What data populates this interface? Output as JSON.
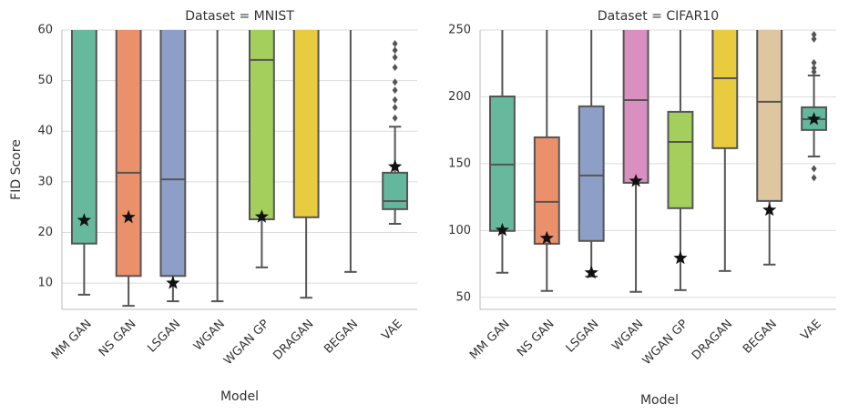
{
  "chart_data": [
    {
      "type": "box",
      "title": "Dataset = MNIST",
      "y_label": "FID Score",
      "x_label": "Model",
      "categories": [
        "MM GAN",
        "NS GAN",
        "LSGAN",
        "WGAN",
        "WGAN GP",
        "DRAGAN",
        "BEGAN",
        "VAE"
      ],
      "colors": [
        "#66b99c",
        "#ea906b",
        "#8d9fc6",
        "#d98fc0",
        "#a5cf5d",
        "#e9cb3f",
        "#dec6a0",
        "#62b79c"
      ],
      "whislo": [
        7.7,
        5.5,
        6.4,
        6.4,
        13.1,
        7.1,
        12.2,
        21.7
      ],
      "q1": [
        17.8,
        11.4,
        11.4,
        null,
        22.6,
        23.0,
        null,
        24.6
      ],
      "median": [
        null,
        31.8,
        30.5,
        null,
        54.1,
        null,
        null,
        26.2
      ],
      "q3": [
        null,
        null,
        null,
        null,
        null,
        null,
        null,
        31.8
      ],
      "whishi": [
        null,
        null,
        null,
        null,
        null,
        null,
        null,
        40.9
      ],
      "best": [
        22.4,
        23.0,
        10.0,
        null,
        23.1,
        null,
        null,
        33.0
      ],
      "outliers": [
        [],
        [],
        [],
        [],
        [],
        [],
        [],
        [
          57.3,
          56.0,
          54.6,
          52.6,
          49.7,
          48.1,
          46.2,
          44.7,
          42.6
        ]
      ],
      "ylim": [
        4.8,
        60
      ],
      "yticks": [
        10,
        20,
        30,
        40,
        50,
        60
      ],
      "grid": true
    },
    {
      "type": "box",
      "title": "Dataset = CIFAR10",
      "x_label": "Model",
      "categories": [
        "MM GAN",
        "NS GAN",
        "LSGAN",
        "WGAN",
        "WGAN GP",
        "DRAGAN",
        "BEGAN",
        "VAE"
      ],
      "colors": [
        "#66b99c",
        "#ea906b",
        "#8d9fc6",
        "#d98fc0",
        "#a5cf5d",
        "#e9cb3f",
        "#dec6a0",
        "#62b79c"
      ],
      "whislo": [
        68.4,
        54.8,
        65.6,
        54.1,
        55.4,
        69.7,
        74.5,
        155.4
      ],
      "q1": [
        99.7,
        90.1,
        92.2,
        135.7,
        116.7,
        161.6,
        122.1,
        175.2
      ],
      "median": [
        149.3,
        121.4,
        141.2,
        197.6,
        166.3,
        213.9,
        196.3,
        183.3
      ],
      "q3": [
        200.3,
        169.7,
        192.9,
        null,
        188.8,
        null,
        null,
        192.2
      ],
      "whishi": [
        null,
        null,
        null,
        null,
        null,
        null,
        null,
        216.0
      ],
      "best": [
        100.3,
        94.2,
        68.4,
        137.0,
        79.3,
        null,
        115.3,
        183.3
      ],
      "outliers": [
        [],
        [],
        [],
        [],
        [],
        [],
        [],
        [
          246.6,
          243.3,
          225.6,
          221.5,
          218.7,
          146.3,
          139.5
        ]
      ],
      "ylim": [
        41,
        250
      ],
      "yticks": [
        50,
        100,
        150,
        200,
        250
      ],
      "grid": true
    }
  ]
}
